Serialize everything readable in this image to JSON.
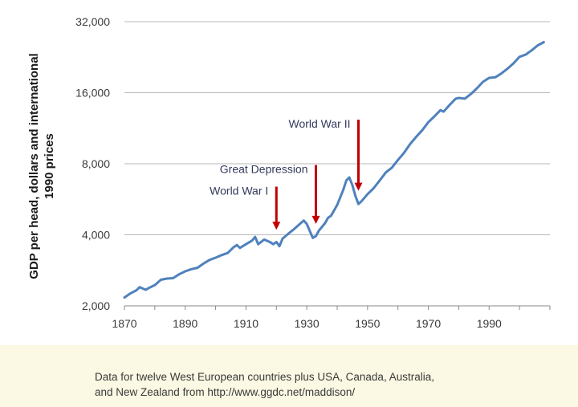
{
  "chart_data": {
    "type": "line",
    "title": "",
    "ylabel_line1": "GDP per head, dollars and international",
    "ylabel_line2": "1990 prices",
    "xlabel": "",
    "y_scale": "log2",
    "ylim": [
      2000,
      32000
    ],
    "xlim": [
      1870,
      2010
    ],
    "y_ticks": [
      2000,
      4000,
      8000,
      16000,
      32000
    ],
    "y_tick_labels": [
      "2,000",
      "4,000",
      "8,000",
      "16,000",
      "32,000"
    ],
    "x_ticks": [
      1870,
      1890,
      1910,
      1930,
      1950,
      1970,
      1990
    ],
    "x_tick_labels": [
      "1870",
      "1890",
      "1910",
      "1930",
      "1950",
      "1970",
      "1990"
    ],
    "grid": "horizontal",
    "line_color": "#4f81bd",
    "arrow_color": "#c00000",
    "series": [
      {
        "points": [
          [
            1870,
            2170
          ],
          [
            1872,
            2260
          ],
          [
            1874,
            2330
          ],
          [
            1875,
            2400
          ],
          [
            1877,
            2340
          ],
          [
            1878,
            2380
          ],
          [
            1880,
            2450
          ],
          [
            1882,
            2580
          ],
          [
            1884,
            2610
          ],
          [
            1886,
            2620
          ],
          [
            1888,
            2720
          ],
          [
            1890,
            2800
          ],
          [
            1892,
            2860
          ],
          [
            1894,
            2900
          ],
          [
            1896,
            3020
          ],
          [
            1898,
            3130
          ],
          [
            1900,
            3200
          ],
          [
            1902,
            3280
          ],
          [
            1904,
            3350
          ],
          [
            1906,
            3550
          ],
          [
            1907,
            3620
          ],
          [
            1908,
            3520
          ],
          [
            1910,
            3650
          ],
          [
            1912,
            3780
          ],
          [
            1913,
            3920
          ],
          [
            1914,
            3650
          ],
          [
            1916,
            3820
          ],
          [
            1918,
            3720
          ],
          [
            1919,
            3650
          ],
          [
            1920,
            3730
          ],
          [
            1921,
            3580
          ],
          [
            1922,
            3850
          ],
          [
            1924,
            4050
          ],
          [
            1926,
            4250
          ],
          [
            1928,
            4480
          ],
          [
            1929,
            4600
          ],
          [
            1930,
            4450
          ],
          [
            1931,
            4150
          ],
          [
            1932,
            3880
          ],
          [
            1933,
            3950
          ],
          [
            1934,
            4170
          ],
          [
            1936,
            4480
          ],
          [
            1937,
            4720
          ],
          [
            1938,
            4820
          ],
          [
            1940,
            5350
          ],
          [
            1942,
            6200
          ],
          [
            1943,
            6800
          ],
          [
            1944,
            7000
          ],
          [
            1945,
            6500
          ],
          [
            1946,
            5850
          ],
          [
            1947,
            5400
          ],
          [
            1948,
            5550
          ],
          [
            1950,
            5950
          ],
          [
            1952,
            6300
          ],
          [
            1954,
            6800
          ],
          [
            1956,
            7350
          ],
          [
            1958,
            7700
          ],
          [
            1960,
            8300
          ],
          [
            1962,
            8900
          ],
          [
            1964,
            9700
          ],
          [
            1966,
            10400
          ],
          [
            1968,
            11100
          ],
          [
            1970,
            12000
          ],
          [
            1972,
            12700
          ],
          [
            1974,
            13500
          ],
          [
            1975,
            13300
          ],
          [
            1977,
            14200
          ],
          [
            1979,
            15100
          ],
          [
            1980,
            15200
          ],
          [
            1982,
            15100
          ],
          [
            1984,
            15800
          ],
          [
            1986,
            16700
          ],
          [
            1988,
            17800
          ],
          [
            1990,
            18500
          ],
          [
            1992,
            18600
          ],
          [
            1994,
            19300
          ],
          [
            1996,
            20200
          ],
          [
            1998,
            21300
          ],
          [
            2000,
            22700
          ],
          [
            2002,
            23200
          ],
          [
            2004,
            24200
          ],
          [
            2006,
            25400
          ],
          [
            2008,
            26200
          ]
        ]
      }
    ],
    "annotations": [
      {
        "label": "World War I",
        "year": 1920,
        "arrow_top": 6400,
        "arrow_tip": 4200
      },
      {
        "label": "Great Depression",
        "year": 1933,
        "arrow_top": 7900,
        "arrow_tip": 4450
      },
      {
        "label": "World War II",
        "year": 1947,
        "arrow_top": 12300,
        "arrow_tip": 6150
      }
    ]
  },
  "caption": {
    "line1": "Data for twelve West European countries plus USA, Canada, Australia,",
    "line2": "and New Zealand from http://www.ggdc.net/maddison/"
  }
}
